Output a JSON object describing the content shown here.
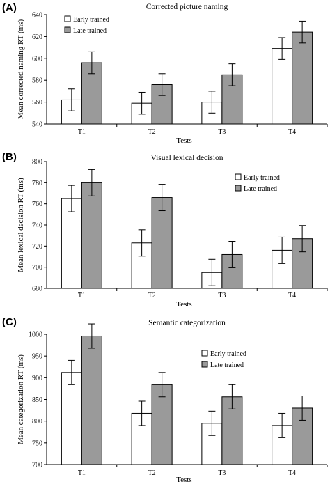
{
  "colors": {
    "early": "#ffffff",
    "late": "#9a9a9a",
    "stroke": "#000000"
  },
  "chart_data": [
    {
      "panel_label": "(A)",
      "type": "bar",
      "title": "Corrected picture naming",
      "xlabel": "Tests",
      "ylabel": "Mean corrected naming RT (ms)",
      "ylim": [
        540,
        640
      ],
      "yticks": [
        "540",
        "560",
        "580",
        "600",
        "620",
        "640"
      ],
      "legend_placement": "top-left",
      "categories": [
        "T1",
        "T2",
        "T3",
        "T4"
      ],
      "series": [
        {
          "name": "Early trained",
          "values": [
            562,
            559,
            560,
            609
          ],
          "errors": [
            10,
            10,
            10,
            10
          ]
        },
        {
          "name": "Late trained",
          "values": [
            596,
            576,
            585,
            624
          ],
          "errors": [
            10,
            10,
            10,
            10
          ]
        }
      ]
    },
    {
      "panel_label": "(B)",
      "type": "bar",
      "title": "Visual lexical decision",
      "xlabel": "Tests",
      "ylabel": "Mean lexical decision RT (ms)",
      "ylim": [
        680,
        800
      ],
      "yticks": [
        "680",
        "700",
        "720",
        "740",
        "760",
        "780",
        "800"
      ],
      "legend_placement": "top-right",
      "categories": [
        "T1",
        "T2",
        "T3",
        "T4"
      ],
      "series": [
        {
          "name": "Early trained",
          "values": [
            765,
            723,
            695,
            716
          ],
          "errors": [
            12.5,
            12.5,
            12.5,
            12.5
          ]
        },
        {
          "name": "Late trained",
          "values": [
            780,
            766,
            712,
            727
          ],
          "errors": [
            12.5,
            12.5,
            12.5,
            12.5
          ]
        }
      ]
    },
    {
      "panel_label": "(C)",
      "type": "bar",
      "title": "Semantic categorization",
      "xlabel": "Tests",
      "ylabel": "Mean categorization RT (ms)",
      "ylim": [
        700,
        1000
      ],
      "yticks": [
        "700",
        "750",
        "800",
        "850",
        "900",
        "950",
        "1000"
      ],
      "legend_placement": "top-right",
      "categories": [
        "T1",
        "T2",
        "T3",
        "T4"
      ],
      "series": [
        {
          "name": "Early trained",
          "values": [
            912,
            818,
            795,
            790
          ],
          "errors": [
            28,
            28,
            28,
            28
          ]
        },
        {
          "name": "Late trained",
          "values": [
            996,
            884,
            856,
            830
          ],
          "errors": [
            28,
            28,
            28,
            28
          ]
        }
      ]
    }
  ]
}
